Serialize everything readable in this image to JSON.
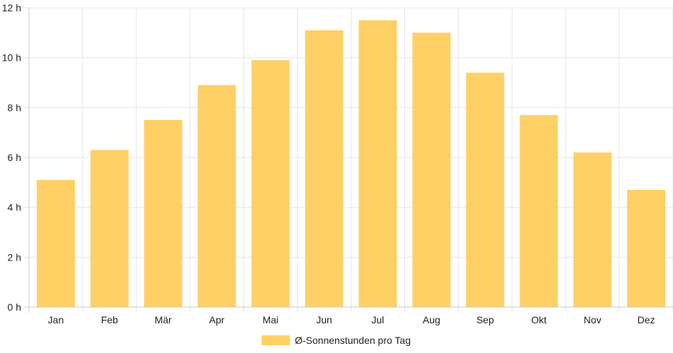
{
  "chart_data": {
    "type": "bar",
    "categories": [
      "Jan",
      "Feb",
      "Mär",
      "Apr",
      "Mai",
      "Jun",
      "Jul",
      "Aug",
      "Sep",
      "Okt",
      "Nov",
      "Dez"
    ],
    "series": [
      {
        "name": "Ø-Sonnenstunden pro Tag",
        "values": [
          5.1,
          6.3,
          7.5,
          8.9,
          9.9,
          11.1,
          11.5,
          11.0,
          9.4,
          7.7,
          6.2,
          4.7
        ]
      }
    ],
    "y_ticks": [
      "0 h",
      "2 h",
      "4 h",
      "6 h",
      "8 h",
      "10 h",
      "12 h"
    ],
    "ylim": [
      0,
      12
    ],
    "grid": true,
    "legend_position": "bottom",
    "colors": {
      "bar": "#fed066",
      "grid": "#e5e5e5",
      "axis": "#c8c8c8"
    }
  }
}
